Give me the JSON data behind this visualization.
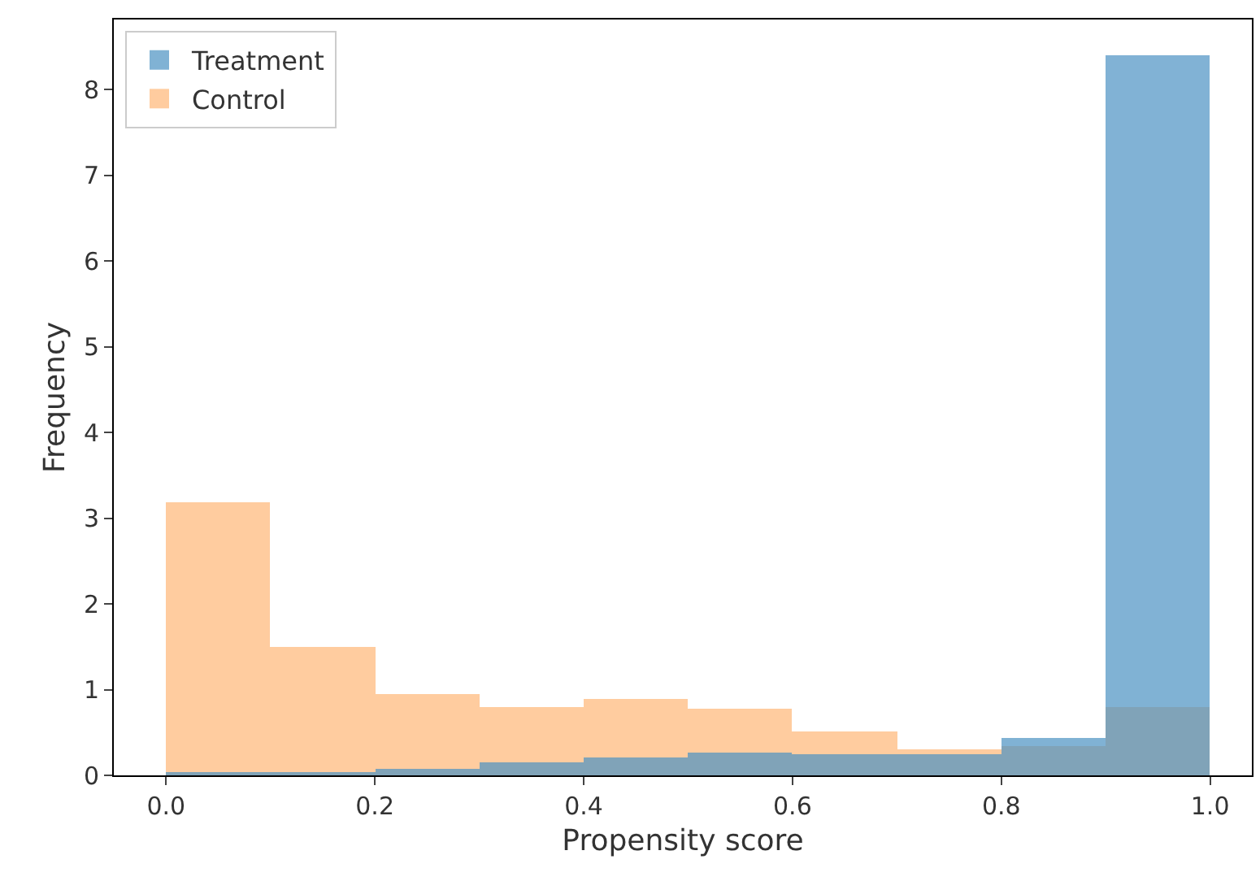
{
  "chart_data": {
    "type": "histogram",
    "xlabel": "Propensity score",
    "ylabel": "Frequency",
    "bins": [
      0.0,
      0.1,
      0.2,
      0.3,
      0.4,
      0.5,
      0.6,
      0.7,
      0.8,
      0.9,
      1.0
    ],
    "series": [
      {
        "name": "Treatment",
        "color": "#4b92c3",
        "values": [
          0.03,
          0.03,
          0.08,
          0.16,
          0.2,
          0.27,
          0.24,
          0.24,
          0.44,
          8.4
        ]
      },
      {
        "name": "Control",
        "color": "#ffcc9f",
        "values": [
          3.19,
          1.5,
          0.94,
          0.8,
          0.89,
          0.77,
          0.52,
          0.31,
          0.35,
          0.8
        ]
      }
    ],
    "xlim": [
      -0.05,
      1.04
    ],
    "xticks": [
      {
        "value": 0,
        "label": "0.0"
      },
      0.2,
      0.4,
      0.6,
      0.8,
      {
        "value": 1,
        "label": "1.0"
      }
    ],
    "ylim": [
      0,
      8.82
    ],
    "yticks": [
      0,
      1,
      2,
      3,
      4,
      5,
      6,
      7,
      8
    ],
    "grid": false,
    "legend": "top left"
  }
}
